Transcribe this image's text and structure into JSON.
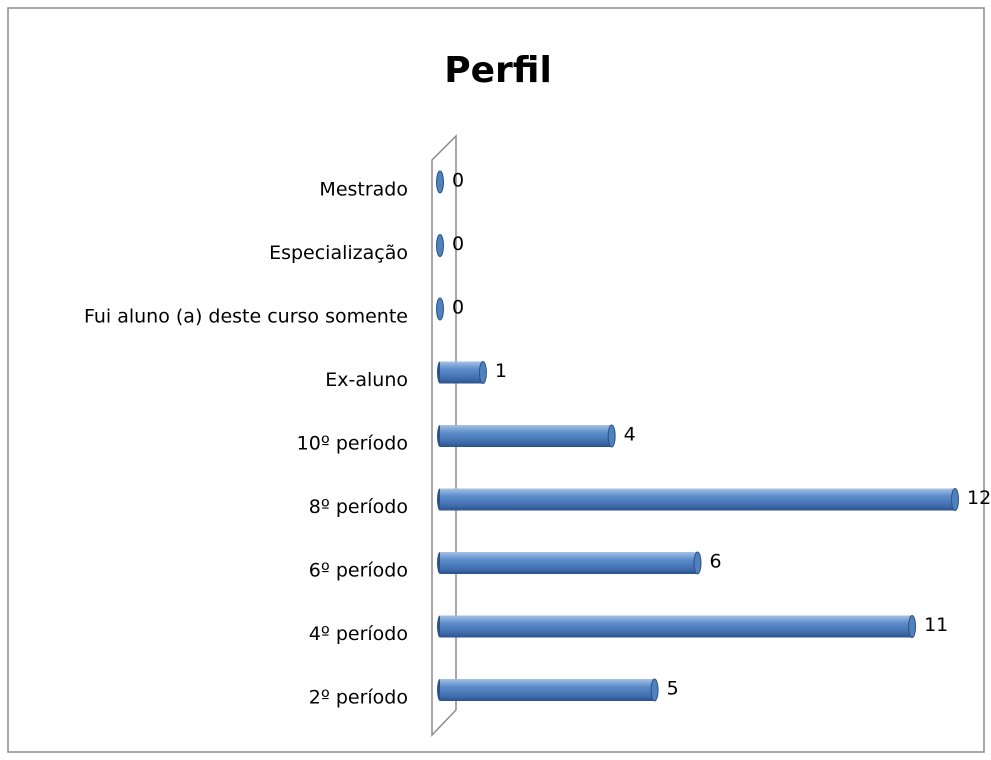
{
  "chart_data": {
    "type": "bar",
    "orientation": "horizontal",
    "title": "Perfil",
    "categories": [
      "2º período",
      "4º período",
      "6º período",
      "8º período",
      "10º período",
      "Ex-aluno",
      "Fui aluno (a) deste curso somente",
      "Especialização",
      "Mestrado"
    ],
    "values": [
      5,
      11,
      6,
      12,
      4,
      1,
      0,
      0,
      0
    ],
    "color": "#4f81bd"
  }
}
